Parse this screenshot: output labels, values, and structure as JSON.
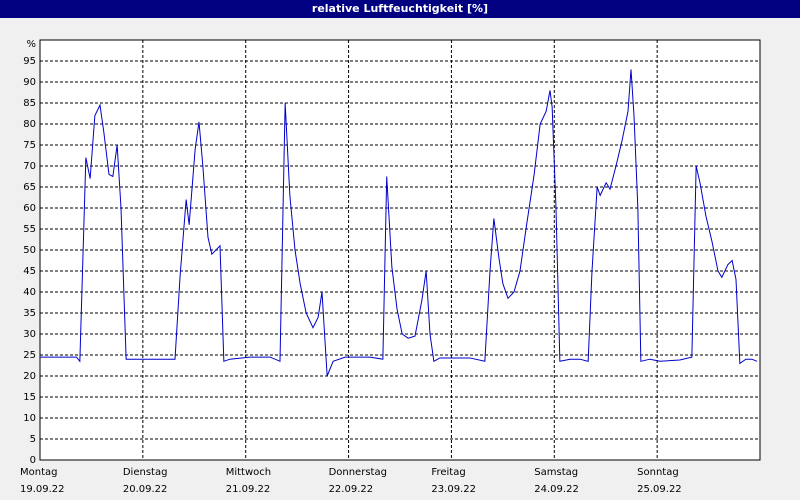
{
  "chart_data": {
    "type": "line",
    "title": "relative Luftfeuchtigkeit [%]",
    "x": [
      0,
      8.5,
      9.3,
      10.7,
      11.7,
      12.8,
      14,
      14.9,
      16.1,
      17,
      18,
      18.9,
      20.1,
      25.7,
      31.5,
      32.7,
      34.1,
      34.8,
      36.2,
      37.1,
      38,
      39.2,
      40.1,
      42,
      42.9,
      44.3,
      49,
      53.7,
      56,
      57.2,
      58.3,
      59.5,
      60.7,
      62.1,
      63.7,
      64.9,
      65.8,
      67,
      68.4,
      71.2,
      77,
      80,
      80.9,
      82.1,
      83.3,
      84.5,
      85.9,
      87.5,
      89.1,
      90.1,
      91,
      91.9,
      93.3,
      100.3,
      103.8,
      105,
      105.9,
      107.1,
      108,
      109.2,
      110.6,
      112,
      113.4,
      115.3,
      116.7,
      118.1,
      119,
      119.5,
      120.4,
      121.3,
      123.7,
      126,
      127.9,
      128.8,
      130,
      130.7,
      132.1,
      133,
      134.4,
      135.8,
      137.2,
      137.9,
      138.6,
      139.5,
      140.2,
      142.3,
      144.7,
      149.3,
      152.1,
      153.1,
      154,
      155.4,
      156.8,
      158.2,
      159.1,
      160.5,
      161.5,
      162.4,
      163.3,
      164.7,
      166.1,
      167.3
    ],
    "series": [
      {
        "name": "relative Luftfeuchtigkeit",
        "color": "#0000cc",
        "values": [
          24.5,
          24.5,
          23.5,
          72,
          67,
          82,
          84.5,
          78,
          68,
          67.5,
          75,
          60,
          24,
          24,
          24,
          44,
          62,
          56,
          74,
          80.5,
          70,
          53,
          49,
          51,
          23.5,
          24,
          24.5,
          24.5,
          23.5,
          85,
          63,
          50,
          42,
          35,
          31.5,
          34,
          40,
          20,
          23.5,
          24.5,
          24.5,
          24,
          67.5,
          46,
          36,
          30,
          29,
          29.5,
          38,
          45,
          30,
          23.5,
          24.3,
          24.3,
          23.5,
          45,
          57.5,
          48,
          42,
          38.5,
          40,
          45,
          55,
          68,
          80,
          83,
          88,
          84,
          60,
          23.5,
          24,
          24,
          23.5,
          45,
          65,
          63,
          66,
          64.5,
          70,
          76,
          83,
          93,
          82,
          60,
          23.5,
          24,
          23.5,
          23.8,
          24.5,
          70,
          66,
          58,
          52,
          45,
          43.5,
          46.5,
          47.5,
          43,
          23,
          24,
          24,
          23.5
        ]
      }
    ],
    "xlim": [
      0,
      168
    ],
    "xticks": [
      {
        "value": 0,
        "label": "Montag"
      },
      {
        "value": 24,
        "label": "Dienstag"
      },
      {
        "value": 48,
        "label": "Mittwoch"
      },
      {
        "value": 72,
        "label": "Donnerstag"
      },
      {
        "value": 96,
        "label": "Freitag"
      },
      {
        "value": 120,
        "label": "Samstag"
      },
      {
        "value": 144,
        "label": "Sonntag"
      }
    ],
    "xtick_dates": [
      "19.09.22",
      "20.09.22",
      "21.09.22",
      "22.09.22",
      "23.09.22",
      "24.09.22",
      "25.09.22"
    ],
    "ylim": [
      0,
      100
    ],
    "yticks": [
      0,
      5,
      10,
      15,
      20,
      25,
      30,
      35,
      40,
      45,
      50,
      55,
      60,
      65,
      70,
      75,
      80,
      85,
      90,
      95,
      {
        "value": 100,
        "label": "%"
      }
    ],
    "grid": true
  }
}
